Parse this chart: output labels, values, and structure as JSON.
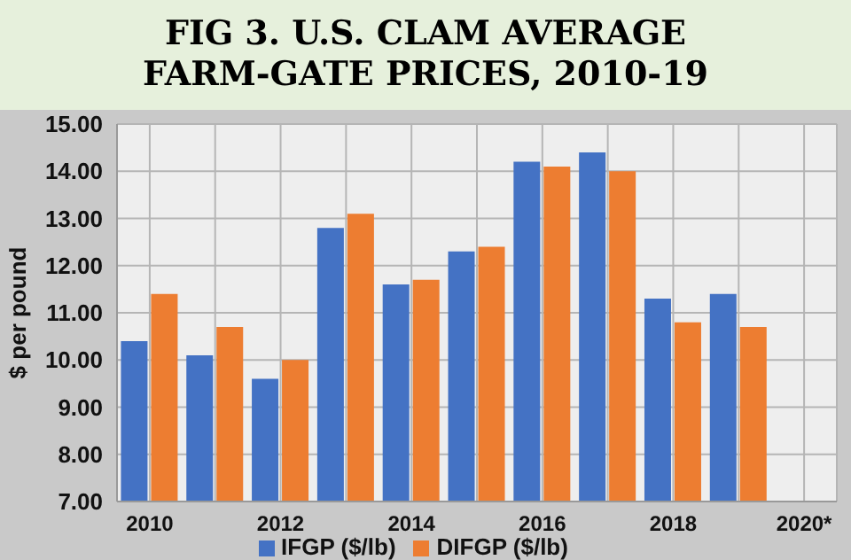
{
  "chart_data": {
    "type": "bar",
    "title": "FIG 3. U.S. CLAM AVERAGE FARM-GATE PRICES, 2010-19",
    "ylabel": "$ per pound",
    "categories": [
      "2010",
      null,
      "2012",
      null,
      "2014",
      null,
      "2016",
      null,
      "2018",
      null,
      "2020*"
    ],
    "series": [
      {
        "name": "IFGP ($/lb)",
        "color": "#4472c4",
        "values": [
          10.4,
          10.1,
          9.6,
          12.8,
          11.6,
          12.3,
          14.2,
          14.4,
          11.3,
          11.4,
          null
        ]
      },
      {
        "name": "DIFGP ($/lb)",
        "color": "#ed7d31",
        "values": [
          11.4,
          10.7,
          10.0,
          13.1,
          11.7,
          12.4,
          14.1,
          14.0,
          10.8,
          10.7,
          null
        ]
      }
    ],
    "ylim": [
      7,
      15
    ],
    "yticks": [
      {
        "value": 7,
        "label": "7.00"
      },
      {
        "value": 8,
        "label": "8.00"
      },
      {
        "value": 9,
        "label": "9.00"
      },
      {
        "value": 10,
        "label": "10.00"
      },
      {
        "value": 11,
        "label": "11.00"
      },
      {
        "value": 12,
        "label": "12.00"
      },
      {
        "value": 13,
        "label": "13.00"
      },
      {
        "value": 14,
        "label": "14.00"
      },
      {
        "value": 15,
        "label": "15.00"
      }
    ],
    "grid": true,
    "legend": "bottom"
  }
}
